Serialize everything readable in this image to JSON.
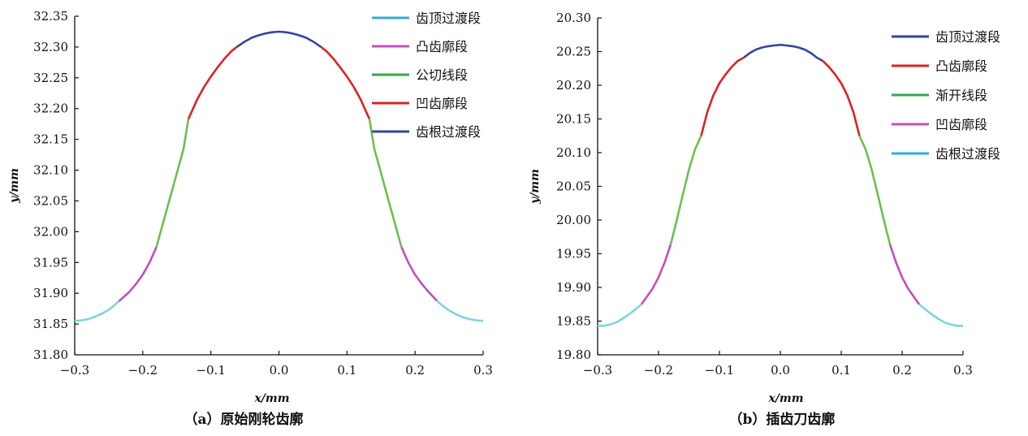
{
  "charts": [
    {
      "panel": "a",
      "caption": "（a）原始刚轮齿廓",
      "chart_data": {
        "type": "line",
        "title": "",
        "xlabel": "x/mm",
        "ylabel": "y/mm",
        "xlim": [
          -0.3,
          0.3
        ],
        "ylim": [
          31.8,
          32.35
        ],
        "xticks": [
          "−0.3",
          "−0.2",
          "−0.1",
          "0.0",
          "0.1",
          "0.2",
          "0.3"
        ],
        "yticks": [
          "31.80",
          "31.85",
          "31.90",
          "31.95",
          "32.00",
          "32.05",
          "32.10",
          "32.15",
          "32.20",
          "32.25",
          "32.30",
          "32.35"
        ],
        "grid": false,
        "legend_position": "top-right",
        "legend": [
          {
            "label": "齿顶过渡段",
            "color": "#33aadd"
          },
          {
            "label": "凸齿廓段",
            "color": "#c050b8"
          },
          {
            "label": "公切线段",
            "color": "#33aa44"
          },
          {
            "label": "凹齿廓段",
            "color": "#dd2222"
          },
          {
            "label": "齿根过渡段",
            "color": "#3344a0"
          }
        ],
        "series": [
          {
            "color": "#7ed3e0",
            "x": [
              -0.3,
              -0.29,
              -0.28,
              -0.27,
              -0.26,
              -0.25,
              -0.24,
              -0.235
            ],
            "y": [
              31.855,
              31.856,
              31.858,
              31.862,
              31.867,
              31.873,
              31.882,
              31.887
            ]
          },
          {
            "color": "#c050b8",
            "x": [
              -0.235,
              -0.22,
              -0.21,
              -0.2,
              -0.19,
              -0.18
            ],
            "y": [
              31.887,
              31.902,
              31.915,
              31.93,
              31.95,
              31.975
            ]
          },
          {
            "color": "#6cc04a",
            "x": [
              -0.18,
              -0.17,
              -0.16,
              -0.15,
              -0.14,
              -0.133
            ],
            "y": [
              31.975,
              32.015,
              32.055,
              32.095,
              32.135,
              32.183
            ]
          },
          {
            "color": "#dd2222",
            "x": [
              -0.133,
              -0.12,
              -0.11,
              -0.1,
              -0.09,
              -0.08,
              -0.07,
              -0.062
            ],
            "y": [
              32.183,
              32.215,
              32.235,
              32.252,
              32.267,
              32.281,
              32.293,
              32.3
            ]
          },
          {
            "color": "#3344a0",
            "x": [
              -0.062,
              -0.05,
              -0.04,
              -0.03,
              -0.02,
              -0.01,
              0.0,
              0.01,
              0.02,
              0.03,
              0.04,
              0.05,
              0.062
            ],
            "y": [
              32.3,
              32.309,
              32.315,
              32.319,
              32.322,
              32.324,
              32.325,
              32.324,
              32.322,
              32.319,
              32.315,
              32.309,
              32.3
            ]
          },
          {
            "color": "#dd2222",
            "x": [
              0.062,
              0.07,
              0.08,
              0.09,
              0.1,
              0.11,
              0.12,
              0.133
            ],
            "y": [
              32.3,
              32.293,
              32.281,
              32.267,
              32.252,
              32.235,
              32.215,
              32.183
            ]
          },
          {
            "color": "#6cc04a",
            "x": [
              0.133,
              0.14,
              0.15,
              0.16,
              0.17,
              0.18
            ],
            "y": [
              32.183,
              32.135,
              32.095,
              32.055,
              32.015,
              31.975
            ]
          },
          {
            "color": "#c050b8",
            "x": [
              0.18,
              0.19,
              0.2,
              0.21,
              0.22,
              0.232
            ],
            "y": [
              31.975,
              31.95,
              31.93,
              31.915,
              31.902,
              31.888
            ]
          },
          {
            "color": "#7ed3e0",
            "x": [
              0.232,
              0.24,
              0.25,
              0.26,
              0.27,
              0.28,
              0.29,
              0.3
            ],
            "y": [
              31.888,
              31.88,
              31.872,
              31.866,
              31.861,
              31.858,
              31.856,
              31.855
            ]
          }
        ]
      }
    },
    {
      "panel": "b",
      "caption": "（b）插齿刀齿廓",
      "chart_data": {
        "type": "line",
        "title": "",
        "xlabel": "x/mm",
        "ylabel": "y/mm",
        "xlim": [
          -0.3,
          0.3
        ],
        "ylim": [
          19.8,
          20.3
        ],
        "xticks": [
          "−0.3",
          "−0.2",
          "−0.1",
          "0.0",
          "0.1",
          "0.2",
          "0.3"
        ],
        "yticks": [
          "19.80",
          "19.85",
          "19.90",
          "19.95",
          "20.00",
          "20.05",
          "20.10",
          "20.15",
          "20.20",
          "20.25",
          "20.30"
        ],
        "grid": false,
        "legend_position": "top-right",
        "legend": [
          {
            "label": "齿顶过渡段",
            "color": "#3344a0"
          },
          {
            "label": "凸齿廓段",
            "color": "#dd2222"
          },
          {
            "label": "渐开线段",
            "color": "#33aa44"
          },
          {
            "label": "凹齿廓段",
            "color": "#c050b8"
          },
          {
            "label": "齿根过渡段",
            "color": "#33aadd"
          }
        ],
        "series": [
          {
            "color": "#7ed3e0",
            "x": [
              -0.3,
              -0.29,
              -0.28,
              -0.27,
              -0.26,
              -0.25,
              -0.24,
              -0.228
            ],
            "y": [
              19.843,
              19.843,
              19.845,
              19.848,
              19.853,
              19.859,
              19.866,
              19.875
            ]
          },
          {
            "color": "#c050b8",
            "x": [
              -0.228,
              -0.22,
              -0.21,
              -0.2,
              -0.19,
              -0.18
            ],
            "y": [
              19.875,
              19.885,
              19.898,
              19.915,
              19.937,
              19.964
            ]
          },
          {
            "color": "#6cc04a",
            "x": [
              -0.18,
              -0.17,
              -0.16,
              -0.15,
              -0.14,
              -0.13
            ],
            "y": [
              19.964,
              20.0,
              20.038,
              20.075,
              20.105,
              20.125
            ]
          },
          {
            "color": "#dd2222",
            "x": [
              -0.13,
              -0.12,
              -0.11,
              -0.1,
              -0.09,
              -0.08,
              -0.07,
              -0.06
            ],
            "y": [
              20.125,
              20.16,
              20.185,
              20.203,
              20.216,
              20.227,
              20.236,
              20.241
            ]
          },
          {
            "color": "#3344a0",
            "x": [
              -0.06,
              -0.05,
              -0.04,
              -0.03,
              -0.02,
              -0.01,
              0.0,
              0.01,
              0.02,
              0.03,
              0.04,
              0.05,
              0.06,
              0.07
            ],
            "y": [
              20.241,
              20.248,
              20.253,
              20.256,
              20.258,
              20.259,
              20.26,
              20.259,
              20.258,
              20.256,
              20.253,
              20.248,
              20.241,
              20.236
            ]
          },
          {
            "color": "#dd2222",
            "x": [
              0.07,
              0.08,
              0.09,
              0.1,
              0.11,
              0.12,
              0.13
            ],
            "y": [
              20.236,
              20.227,
              20.216,
              20.203,
              20.185,
              20.16,
              20.125
            ]
          },
          {
            "color": "#6cc04a",
            "x": [
              0.13,
              0.14,
              0.15,
              0.16,
              0.17,
              0.18
            ],
            "y": [
              20.125,
              20.105,
              20.075,
              20.038,
              20.0,
              19.964
            ]
          },
          {
            "color": "#c050b8",
            "x": [
              0.18,
              0.19,
              0.2,
              0.21,
              0.22,
              0.228
            ],
            "y": [
              19.964,
              19.937,
              19.915,
              19.898,
              19.885,
              19.875
            ]
          },
          {
            "color": "#7ed3e0",
            "x": [
              0.228,
              0.24,
              0.25,
              0.26,
              0.27,
              0.28,
              0.29,
              0.3
            ],
            "y": [
              19.875,
              19.866,
              19.859,
              19.853,
              19.848,
              19.845,
              19.843,
              19.843
            ]
          }
        ]
      }
    }
  ]
}
